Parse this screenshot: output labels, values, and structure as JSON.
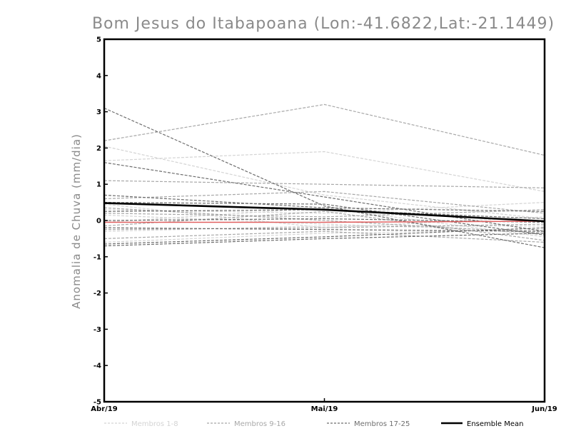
{
  "chart_data": {
    "type": "line",
    "title": "Bom Jesus do Itabapoana (Lon:-41.6822,Lat:-21.1449)",
    "xlabel": "",
    "ylabel": "Anomalia de Chuva (mm/dia)",
    "categories": [
      "Abr/19",
      "Mai/19",
      "Jun/19"
    ],
    "ylim": [
      -5,
      5
    ],
    "yticks": [
      -5,
      -4,
      -3,
      -2,
      -1,
      0,
      1,
      2,
      3,
      4,
      5
    ],
    "grid": false,
    "legend_position": "bottom",
    "legend": [
      {
        "label": "Membros 1-8",
        "color": "#d4d4d4",
        "style": "dashed"
      },
      {
        "label": "Membros 9-16",
        "color": "#a8a8a8",
        "style": "dashed"
      },
      {
        "label": "Membros 17-25",
        "color": "#6e6e6e",
        "style": "dashed"
      },
      {
        "label": "Ensemble Mean",
        "color": "#000000",
        "style": "solid"
      }
    ],
    "series": [
      {
        "group": 1,
        "values": [
          2.05,
          0.7,
          0.05
        ]
      },
      {
        "group": 1,
        "values": [
          1.65,
          1.9,
          0.8
        ]
      },
      {
        "group": 1,
        "values": [
          0.3,
          0.2,
          0.5
        ]
      },
      {
        "group": 1,
        "values": [
          0.15,
          -0.1,
          -0.3
        ]
      },
      {
        "group": 1,
        "values": [
          -0.3,
          -0.15,
          -0.15
        ]
      },
      {
        "group": 1,
        "values": [
          -0.05,
          0.35,
          -0.45
        ]
      },
      {
        "group": 1,
        "values": [
          0.45,
          -0.2,
          0.1
        ]
      },
      {
        "group": 1,
        "values": [
          -0.6,
          -0.35,
          -0.25
        ]
      },
      {
        "group": 2,
        "values": [
          2.2,
          3.2,
          1.8
        ]
      },
      {
        "group": 2,
        "values": [
          1.1,
          1.0,
          0.9
        ]
      },
      {
        "group": 2,
        "values": [
          0.2,
          0.1,
          0.3
        ]
      },
      {
        "group": 2,
        "values": [
          -0.5,
          -0.3,
          -0.6
        ]
      },
      {
        "group": 2,
        "values": [
          0.6,
          0.8,
          0.2
        ]
      },
      {
        "group": 2,
        "values": [
          -0.25,
          -0.2,
          -0.1
        ]
      },
      {
        "group": 2,
        "values": [
          0.35,
          0.0,
          -0.35
        ]
      },
      {
        "group": 2,
        "values": [
          -0.15,
          0.25,
          -0.55
        ]
      },
      {
        "group": 3,
        "values": [
          3.1,
          0.4,
          -0.75
        ]
      },
      {
        "group": 3,
        "values": [
          1.6,
          0.65,
          -0.3
        ]
      },
      {
        "group": 3,
        "values": [
          0.7,
          0.35,
          0.25
        ]
      },
      {
        "group": 3,
        "values": [
          0.5,
          0.45,
          -0.4
        ]
      },
      {
        "group": 3,
        "values": [
          -0.7,
          -0.5,
          -0.35
        ]
      },
      {
        "group": 3,
        "values": [
          -0.65,
          -0.45,
          -0.2
        ]
      },
      {
        "group": 3,
        "values": [
          0.25,
          0.3,
          0.05
        ]
      },
      {
        "group": 3,
        "values": [
          -0.2,
          -0.25,
          -0.3
        ]
      },
      {
        "group": 3,
        "values": [
          0.0,
          0.05,
          -0.05
        ]
      }
    ],
    "reference_line": {
      "values": [
        -0.05,
        -0.05,
        -0.02
      ],
      "color": "#e06060"
    },
    "ensemble_mean": {
      "name": "Ensemble Mean",
      "values": [
        0.48,
        0.3,
        -0.02
      ],
      "color": "#000000"
    }
  }
}
